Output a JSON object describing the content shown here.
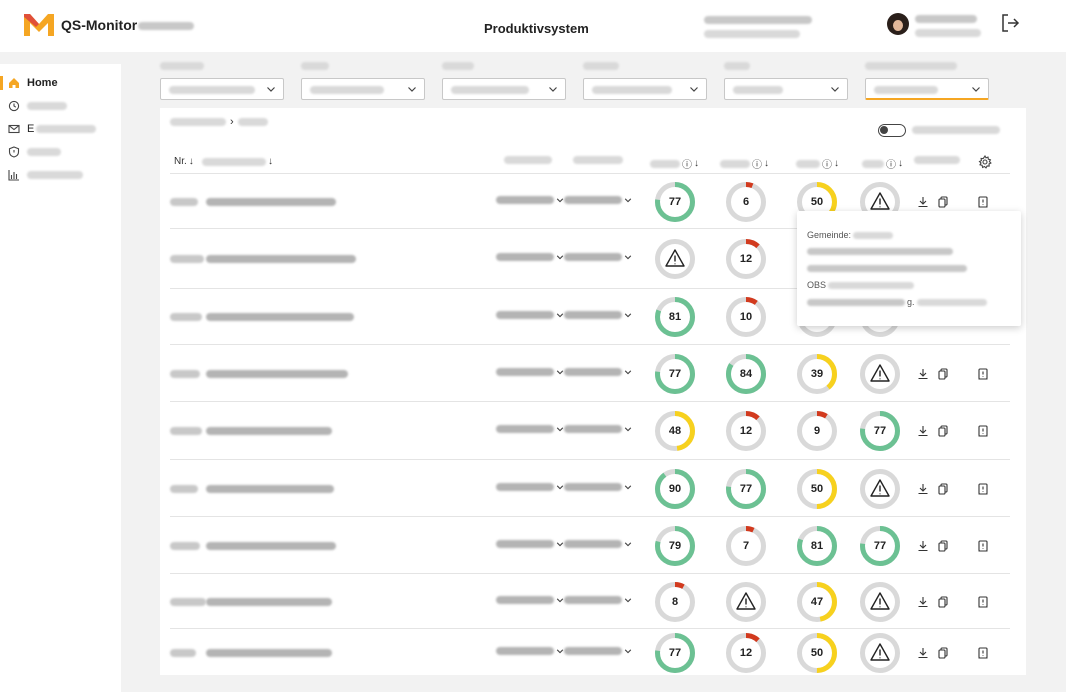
{
  "header": {
    "app_title": "QS-Monitor",
    "center_title": "Produktivsystem"
  },
  "sidebar": {
    "items": [
      {
        "label": "Home",
        "icon": "home-icon",
        "active": true
      },
      {
        "label": "",
        "icon": "history-icon",
        "active": false
      },
      {
        "label": "E",
        "icon": "mail-icon",
        "active": false
      },
      {
        "label": "",
        "icon": "shield-icon",
        "active": false
      },
      {
        "label": "",
        "icon": "bar-chart-icon",
        "active": false
      }
    ]
  },
  "table": {
    "columns": [
      "Nr.",
      "",
      "",
      "",
      "",
      "",
      "",
      "",
      ""
    ],
    "rows": [
      {
        "scores": [
          77,
          6,
          50,
          null
        ]
      },
      {
        "scores": [
          null,
          12,
          null,
          null
        ]
      },
      {
        "scores": [
          81,
          10,
          null,
          null
        ]
      },
      {
        "scores": [
          77,
          84,
          39,
          null
        ]
      },
      {
        "scores": [
          48,
          12,
          9,
          77
        ]
      },
      {
        "scores": [
          90,
          77,
          50,
          null
        ]
      },
      {
        "scores": [
          79,
          7,
          81,
          77
        ]
      },
      {
        "scores": [
          8,
          null,
          47,
          null
        ]
      },
      {
        "scores": [
          77,
          12,
          50,
          null
        ]
      }
    ]
  },
  "tooltip": {
    "lines": [
      "Gemeinde:",
      "",
      "",
      "OBS",
      "g."
    ]
  },
  "colors": {
    "accent": "#f5a623",
    "green": "#6cc193",
    "red": "#d23a1e",
    "yellow": "#f7d11e",
    "track": "#d9d9d9"
  }
}
